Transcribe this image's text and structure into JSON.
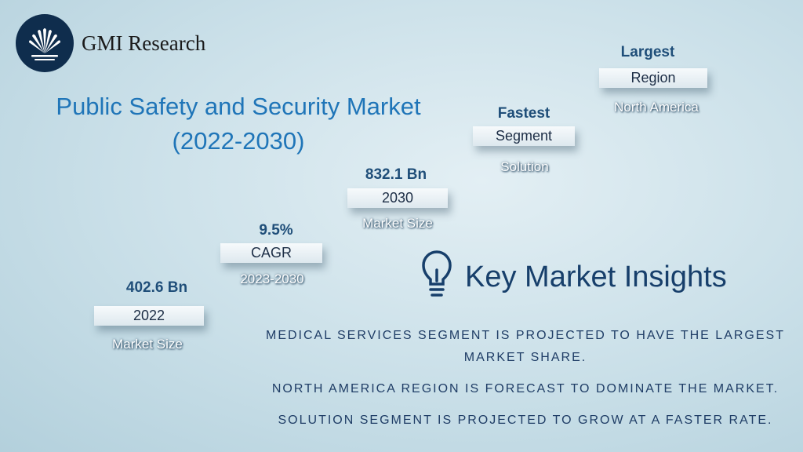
{
  "brand": {
    "name": "GMI Research"
  },
  "title": {
    "line1": "Public Safety and Security Market",
    "line2": "(2022-2030)"
  },
  "steps": [
    {
      "top": "402.6 Bn",
      "label": "2022",
      "sub": "Market Size"
    },
    {
      "top": "9.5%",
      "label": "CAGR",
      "sub": "2023-2030"
    },
    {
      "top": "832.1 Bn",
      "label": "2030",
      "sub": "Market Size"
    },
    {
      "top": "Fastest",
      "label": "Segment",
      "sub": "Solution"
    },
    {
      "top": "Largest",
      "label": "Region",
      "sub": "North America"
    }
  ],
  "insights_title": "Key Market Insights",
  "insights_icon": "lightbulb-icon",
  "insights": [
    "MEDICAL SERVICES SEGMENT IS PROJECTED TO HAVE THE LARGEST MARKET SHARE.",
    "NORTH AMERICA REGION IS FORECAST TO DOMINATE THE MARKET.",
    "SOLUTION SEGMENT IS PROJECTED TO GROW AT A FASTER RATE."
  ],
  "colors": {
    "title": "#1f75b8",
    "accent": "#1f4e79",
    "logo_bg": "#0f2d4d"
  }
}
